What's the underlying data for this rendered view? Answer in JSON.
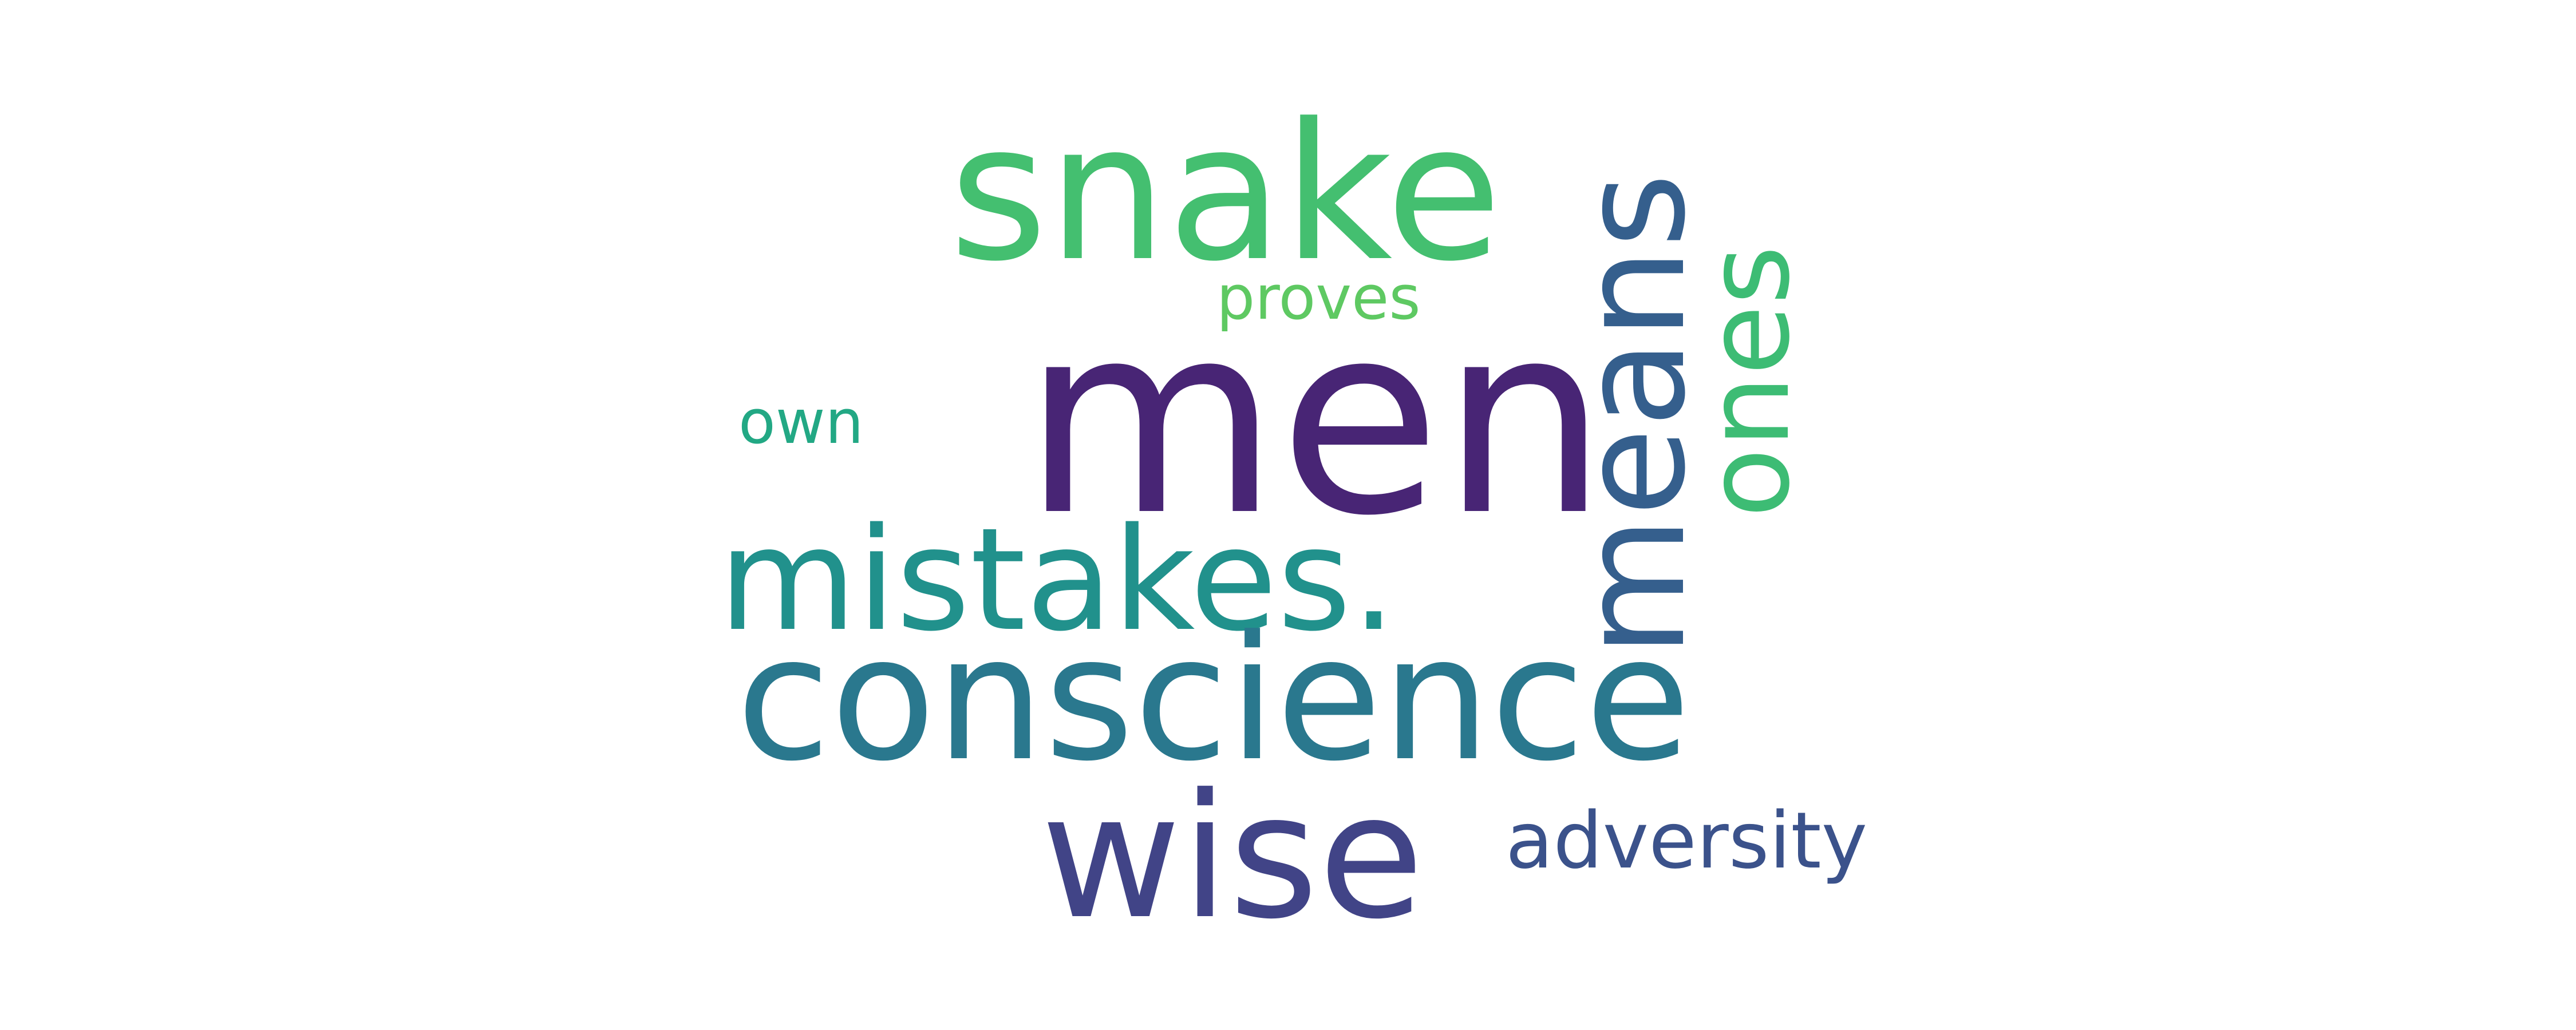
{
  "words": {
    "men": "men",
    "conscience": "conscience",
    "snake": "snake",
    "wise": "wise",
    "mistakes": "mistakes.",
    "adversity": "adversity",
    "proves": "proves",
    "own": "own",
    "means": "means",
    "ones": "ones"
  },
  "palette": {
    "men": "#482575",
    "conscience": "#2a788e",
    "snake": "#44bf70",
    "wise": "#414487",
    "mistakes": "#21918c",
    "adversity": "#3b528b",
    "proves": "#5ec962",
    "own": "#22a884",
    "means": "#355f8d",
    "ones": "#3dbc74"
  },
  "orientation": {
    "vertical_words": [
      "means",
      "ones"
    ]
  }
}
